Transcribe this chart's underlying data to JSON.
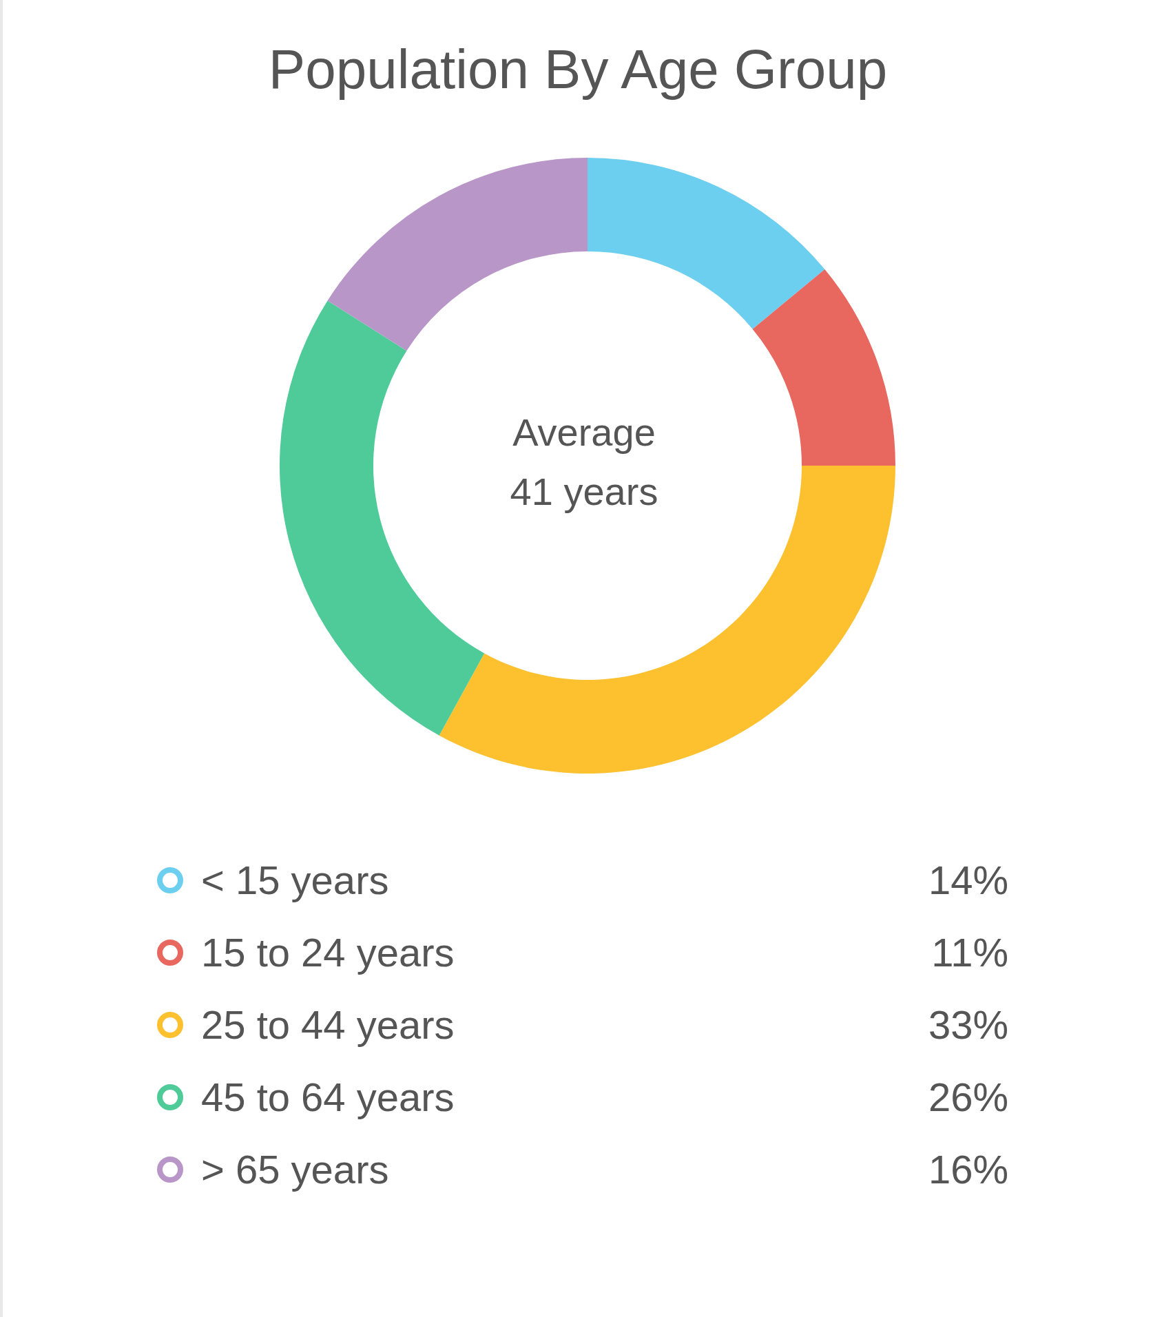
{
  "chart_data": {
    "type": "donut",
    "title": "Population By Age Group",
    "categories": [
      "< 15 years",
      "15 to 24 years",
      "25 to 44 years",
      "45 to 64 years",
      "> 65 years"
    ],
    "values": [
      14,
      11,
      33,
      26,
      16
    ],
    "value_labels": [
      "14%",
      "11%",
      "33%",
      "26%",
      "16%"
    ],
    "colors": [
      "#6dcff0",
      "#e8675f",
      "#fdc02f",
      "#4ecb98",
      "#b896c8"
    ],
    "annotations": [
      "Average",
      "41 years"
    ],
    "legend": "bottom"
  }
}
